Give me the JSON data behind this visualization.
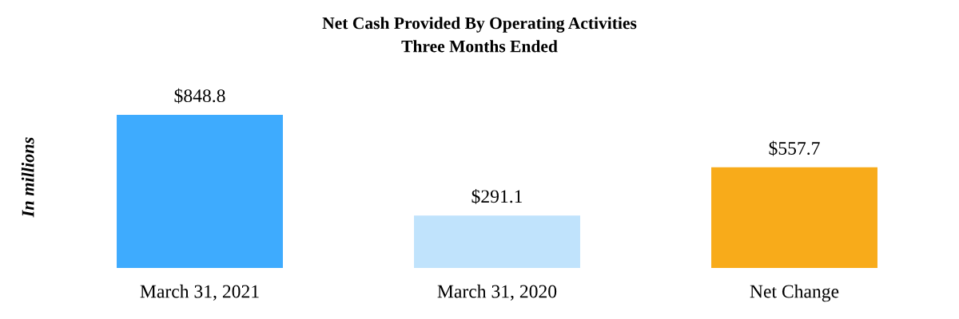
{
  "chart_data": {
    "type": "bar",
    "title": "Net Cash Provided By Operating Activities",
    "subtitle": "Three Months Ended",
    "ylabel": "In millions",
    "categories": [
      "March 31, 2021",
      "March 31, 2020",
      "Net Change"
    ],
    "values": [
      848.8,
      291.1,
      557.7
    ],
    "colors": [
      "#3eabfe",
      "#c0e3fc",
      "#f8ab1a"
    ],
    "value_labels": [
      "$848.8",
      "$291.1",
      "$557.7"
    ]
  }
}
